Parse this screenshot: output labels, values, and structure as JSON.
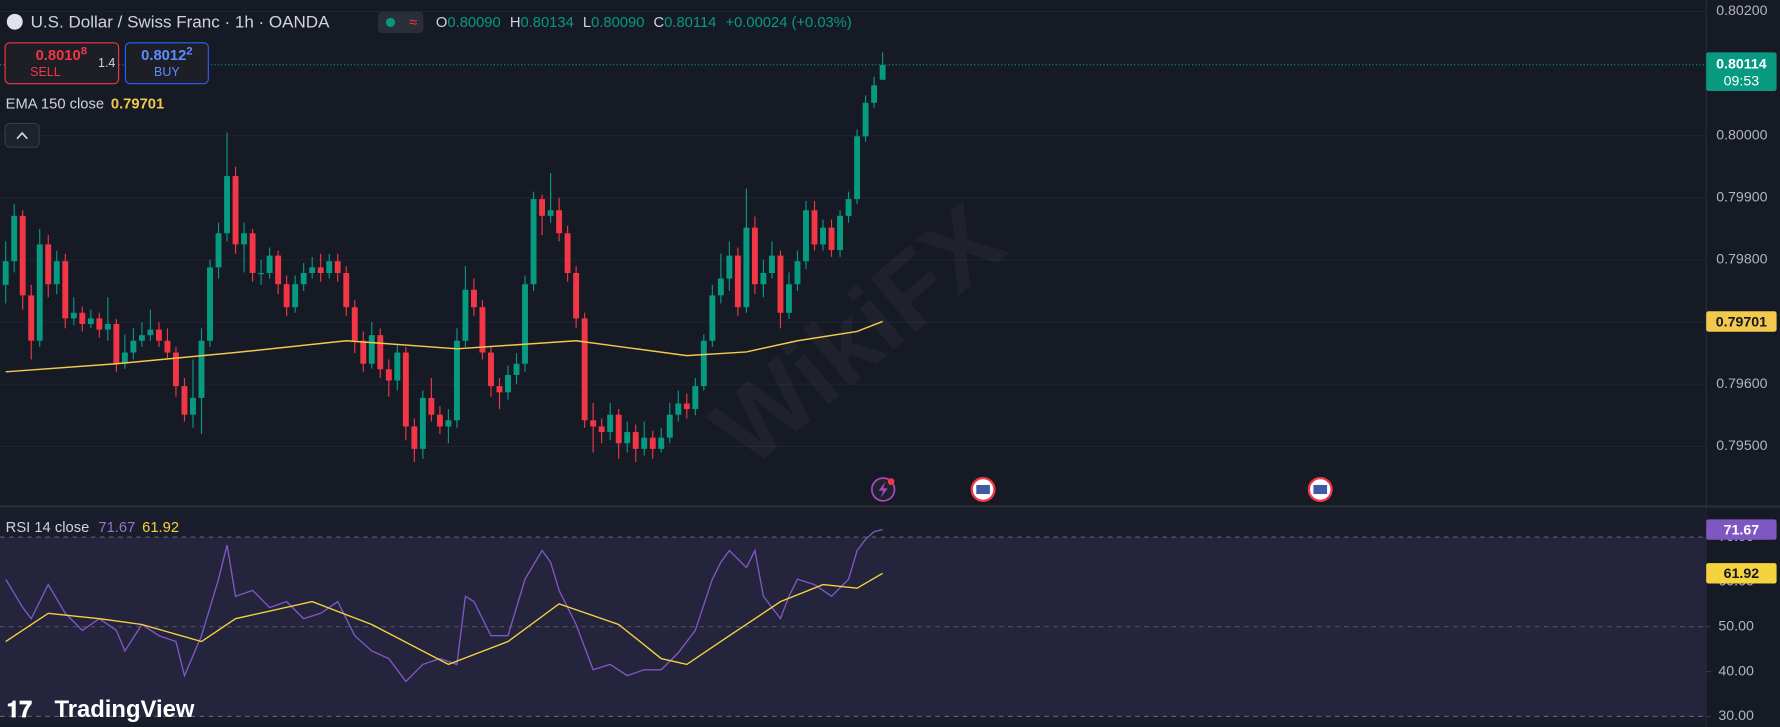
{
  "header": {
    "symbol": "U.S. Dollar / Swiss Franc · 1h · OANDA",
    "ohlc": [
      {
        "key": "O",
        "value": "0.80090"
      },
      {
        "key": "H",
        "value": "0.80134"
      },
      {
        "key": "L",
        "value": "0.80090"
      },
      {
        "key": "C",
        "value": "0.80114"
      }
    ],
    "change": "+0.00024 (+0.03%)"
  },
  "trade": {
    "sell_price": "0.8010",
    "sell_pip": "8",
    "sell": "SELL",
    "spread": "1.4",
    "buy_price": "0.8012",
    "buy_pip": "2",
    "buy": "BUY"
  },
  "brand": "TradingView",
  "watermark": "WikiFX",
  "chart_data": [
    {
      "type": "candlestick",
      "open": [
        0.7976,
        0.79798,
        0.79871,
        0.79743,
        0.7967,
        0.79825,
        0.79761,
        0.79798,
        0.79706,
        0.79715,
        0.79697,
        0.79706,
        0.79688,
        0.79697,
        0.79633,
        0.79651,
        0.7967,
        0.79679,
        0.79688,
        0.7967,
        0.79651,
        0.79597,
        0.79551,
        0.79578,
        0.7967,
        0.79788,
        0.79843,
        0.79935,
        0.79825,
        0.79843,
        0.79779,
        0.79779,
        0.79807,
        0.79761,
        0.79724,
        0.79761,
        0.79779,
        0.79788,
        0.79779,
        0.79798,
        0.79779,
        0.79724,
        0.7967,
        0.79633,
        0.79679,
        0.79624,
        0.79606,
        0.79651,
        0.79532,
        0.79496,
        0.79578,
        0.79551,
        0.79532,
        0.79542,
        0.7967,
        0.79752,
        0.79724,
        0.79651,
        0.79597,
        0.79587,
        0.79615,
        0.79633,
        0.79761,
        0.79898,
        0.79871,
        0.7988,
        0.79843,
        0.79779,
        0.79706,
        0.79542,
        0.79532,
        0.79523,
        0.79551,
        0.79505,
        0.79523,
        0.79496,
        0.79514,
        0.79496,
        0.79514,
        0.79551,
        0.79569,
        0.7956,
        0.79597,
        0.7967,
        0.79743,
        0.7977,
        0.79807,
        0.79724,
        0.79852,
        0.79761,
        0.79779,
        0.79807,
        0.79715,
        0.79761,
        0.79798,
        0.7988,
        0.79825,
        0.79852,
        0.79816,
        0.79871,
        0.79898,
        0.79999,
        0.80053,
        0.8009
      ],
      "high": [
        0.7983,
        0.7989,
        0.7988,
        0.7976,
        0.7985,
        0.7984,
        0.79815,
        0.7981,
        0.7974,
        0.79725,
        0.7972,
        0.79715,
        0.7974,
        0.79705,
        0.7968,
        0.7969,
        0.797,
        0.7972,
        0.797,
        0.7969,
        0.7966,
        0.7961,
        0.7964,
        0.7969,
        0.798,
        0.7986,
        0.80005,
        0.7995,
        0.7986,
        0.7985,
        0.798,
        0.7982,
        0.79815,
        0.79775,
        0.79775,
        0.79795,
        0.79805,
        0.7981,
        0.7981,
        0.7981,
        0.7979,
        0.79735,
        0.79685,
        0.797,
        0.7969,
        0.7964,
        0.79665,
        0.7966,
        0.79545,
        0.7959,
        0.7961,
        0.79565,
        0.7956,
        0.7969,
        0.7979,
        0.7977,
        0.79735,
        0.7966,
        0.7961,
        0.7963,
        0.7965,
        0.79775,
        0.7991,
        0.79905,
        0.7994,
        0.799,
        0.79855,
        0.7979,
        0.79715,
        0.7957,
        0.79545,
        0.7957,
        0.7956,
        0.7954,
        0.79535,
        0.7954,
        0.79525,
        0.7953,
        0.7957,
        0.7959,
        0.79585,
        0.7961,
        0.7968,
        0.7976,
        0.7981,
        0.7983,
        0.7982,
        0.79915,
        0.7987,
        0.798,
        0.7983,
        0.79815,
        0.7978,
        0.79815,
        0.79895,
        0.79895,
        0.79865,
        0.79865,
        0.7988,
        0.7991,
        0.8001,
        0.80065,
        0.80095,
        0.80134
      ],
      "low": [
        0.7973,
        0.7978,
        0.7972,
        0.7964,
        0.7966,
        0.7974,
        0.79745,
        0.7969,
        0.79695,
        0.79685,
        0.7969,
        0.79675,
        0.7967,
        0.7962,
        0.79625,
        0.7964,
        0.7966,
        0.7967,
        0.7966,
        0.7964,
        0.7958,
        0.7954,
        0.7953,
        0.7952,
        0.7966,
        0.7977,
        0.7983,
        0.7981,
        0.7978,
        0.79765,
        0.7976,
        0.7977,
        0.79745,
        0.7971,
        0.79715,
        0.7975,
        0.7977,
        0.79765,
        0.7977,
        0.79765,
        0.7971,
        0.7965,
        0.7962,
        0.79625,
        0.7961,
        0.7958,
        0.7959,
        0.7951,
        0.79475,
        0.7948,
        0.7954,
        0.7952,
        0.79505,
        0.7953,
        0.7966,
        0.7971,
        0.7964,
        0.7958,
        0.7956,
        0.79575,
        0.796,
        0.7962,
        0.7975,
        0.7984,
        0.7986,
        0.7983,
        0.79765,
        0.7969,
        0.7953,
        0.7949,
        0.79505,
        0.7951,
        0.7948,
        0.7949,
        0.79475,
        0.79485,
        0.7948,
        0.7949,
        0.79505,
        0.7954,
        0.79545,
        0.7955,
        0.7959,
        0.7966,
        0.7973,
        0.7975,
        0.7971,
        0.79715,
        0.79745,
        0.7974,
        0.7977,
        0.7969,
        0.79705,
        0.7975,
        0.79785,
        0.79815,
        0.79815,
        0.79805,
        0.79805,
        0.7986,
        0.7989,
        0.7999,
        0.80045,
        0.8009
      ],
      "close": [
        0.79798,
        0.79871,
        0.79743,
        0.7967,
        0.79825,
        0.79761,
        0.79798,
        0.79706,
        0.79715,
        0.79697,
        0.79706,
        0.79688,
        0.79697,
        0.79633,
        0.79651,
        0.7967,
        0.79679,
        0.79688,
        0.7967,
        0.79651,
        0.79597,
        0.79551,
        0.79578,
        0.7967,
        0.79788,
        0.79843,
        0.79935,
        0.79825,
        0.79843,
        0.79779,
        0.79779,
        0.79807,
        0.79761,
        0.79724,
        0.79761,
        0.79779,
        0.79788,
        0.79779,
        0.79798,
        0.79779,
        0.79724,
        0.7967,
        0.79633,
        0.79679,
        0.79624,
        0.79606,
        0.79651,
        0.79532,
        0.79496,
        0.79578,
        0.79551,
        0.79532,
        0.79542,
        0.7967,
        0.79752,
        0.79724,
        0.79651,
        0.79597,
        0.79587,
        0.79615,
        0.79633,
        0.79761,
        0.79898,
        0.79871,
        0.7988,
        0.79843,
        0.79779,
        0.79706,
        0.79542,
        0.79532,
        0.79523,
        0.79551,
        0.79505,
        0.79523,
        0.79496,
        0.79514,
        0.79496,
        0.79514,
        0.79551,
        0.79569,
        0.7956,
        0.79597,
        0.7967,
        0.79743,
        0.7977,
        0.79807,
        0.79724,
        0.79852,
        0.79761,
        0.79779,
        0.79807,
        0.79715,
        0.79761,
        0.79798,
        0.7988,
        0.79825,
        0.79852,
        0.79816,
        0.79871,
        0.79898,
        0.79999,
        0.80053,
        0.80081,
        0.80114
      ],
      "up_color": "#089981",
      "down_color": "#f23645",
      "last_price_label": "0.80114",
      "countdown": "09:53",
      "ylim": [
        0.79405,
        0.80218
      ],
      "yticks": [
        {
          "value": 0.795,
          "label": "0.79500"
        },
        {
          "value": 0.796,
          "label": "0.79600"
        },
        {
          "value": 0.797,
          "label": "0.79700"
        },
        {
          "value": 0.798,
          "label": "0.79800"
        },
        {
          "value": 0.799,
          "label": "0.79900"
        },
        {
          "value": 0.8,
          "label": "0.80000"
        },
        {
          "value": 0.802,
          "label": "0.80200"
        }
      ],
      "overlays": [
        {
          "name": "EMA 150 close",
          "last_label": "0.79701",
          "color": "#f2c94c",
          "x": [
            0,
            13,
            27,
            40,
            53,
            67,
            80,
            87,
            93,
            100,
            103
          ],
          "values": [
            0.7962,
            0.79633,
            0.79651,
            0.7967,
            0.79657,
            0.7967,
            0.79646,
            0.79652,
            0.7967,
            0.79685,
            0.79701
          ]
        }
      ]
    },
    {
      "type": "line",
      "title": "RSI 14 close",
      "ylim": [
        28.2,
        76.3
      ],
      "yticks": [
        {
          "value": 30,
          "label": "30.00"
        },
        {
          "value": 40,
          "label": "40.00"
        },
        {
          "value": 50,
          "label": "50.00"
        },
        {
          "value": 60,
          "label": "60.00"
        },
        {
          "value": 70,
          "label": "70.00"
        }
      ],
      "band": [
        30,
        70
      ],
      "midline": 50,
      "band_color": "#7e57c2",
      "series": [
        {
          "color": "#7e57c2",
          "last_label": "71.67",
          "x": [
            0,
            2,
            3,
            5,
            7,
            9,
            11,
            13,
            14,
            16,
            18,
            20,
            21,
            23,
            25,
            26,
            27,
            29,
            31,
            33,
            35,
            37,
            39,
            41,
            43,
            45,
            47,
            49,
            51,
            53,
            54,
            55,
            57,
            59,
            61,
            63,
            64,
            65,
            67,
            69,
            71,
            73,
            75,
            77,
            79,
            81,
            83,
            84,
            85,
            87,
            88,
            89,
            91,
            92,
            93,
            95,
            96,
            97,
            99,
            100,
            101,
            102,
            103
          ],
          "values": [
            60.6,
            54.3,
            51.8,
            59.4,
            53,
            49.2,
            51.8,
            49.2,
            44.6,
            50.5,
            48,
            46.7,
            39.1,
            48,
            60.6,
            68.2,
            56.8,
            58.1,
            54.3,
            55.6,
            51.8,
            53,
            55.6,
            48,
            44.6,
            42.9,
            37.8,
            41.6,
            42.9,
            41.6,
            56.8,
            55.6,
            48,
            48,
            60.6,
            67,
            64.4,
            58.1,
            50.5,
            40.4,
            41.6,
            39.1,
            40.4,
            40.4,
            44.2,
            49.2,
            60.6,
            64.4,
            67,
            63.2,
            67,
            56.8,
            51.8,
            56.8,
            60.6,
            59.4,
            58.1,
            56.8,
            60.6,
            67,
            69.5,
            71.2,
            71.67
          ]
        },
        {
          "color": "#f5d33f",
          "last_label": "61.92",
          "x": [
            0,
            5,
            11,
            16,
            23,
            27,
            36,
            43,
            52,
            59,
            65,
            72,
            77,
            80,
            85,
            91,
            96,
            100,
            103
          ],
          "values": [
            46.7,
            53,
            51.8,
            50.5,
            46.7,
            51.8,
            55.6,
            50.5,
            41.6,
            46.7,
            55.1,
            50.5,
            42.9,
            41.6,
            48,
            55.6,
            59.4,
            58.6,
            61.92
          ]
        }
      ]
    }
  ]
}
